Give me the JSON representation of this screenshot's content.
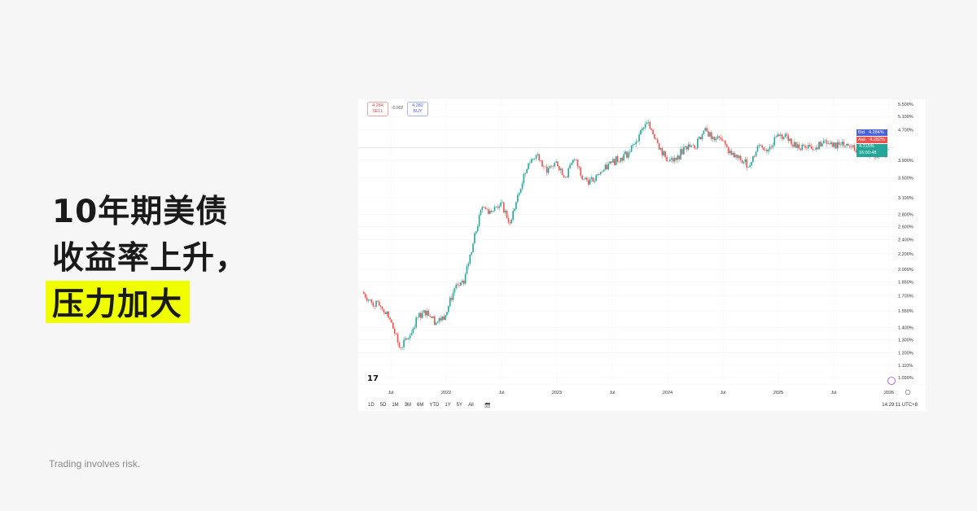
{
  "headline": {
    "line1": "10年期美债",
    "line2": "收益率上升，",
    "line3": "压力加大",
    "highlight_color": "#f0ff00"
  },
  "footer": "Trading involves risk.",
  "quote": {
    "sell_price": "4.284",
    "sell_label": "SELL",
    "spread": "-0.002",
    "buy_price": "4.282",
    "buy_label": "BUY"
  },
  "badges": {
    "bid_label": "Bid",
    "bid_value": "4.284%",
    "ask_label": "Ask",
    "ask_value": "4.282%",
    "last_value": "4.215%",
    "countdown": "16:00:48"
  },
  "toolbar": {
    "timeframes": [
      "1D",
      "5D",
      "1M",
      "3M",
      "6M",
      "YTD",
      "1Y",
      "5Y",
      "All"
    ],
    "clock": "14:29:11 UTC+8"
  },
  "colors": {
    "up": "#26a69a",
    "down": "#ef5350",
    "bid": "#4a62e0",
    "ask": "#ef5350",
    "last": "#26a69a"
  },
  "chart_data": {
    "type": "candlestick",
    "y_scale": "log",
    "ylim": [
      1.03,
      5.5
    ],
    "y_ticks": [
      "5.500%",
      "5.100%",
      "4.700%",
      "3.900%",
      "3.500%",
      "3.100%",
      "2.800%",
      "2.600%",
      "2.400%",
      "2.200%",
      "2.000%",
      "1.850%",
      "1.700%",
      "1.550%",
      "1.400%",
      "1.300%",
      "1.200%",
      "1.110%",
      "1.030%"
    ],
    "y_tick_values": [
      5.5,
      5.1,
      4.7,
      3.9,
      3.5,
      3.1,
      2.8,
      2.6,
      2.4,
      2.2,
      2.0,
      1.85,
      1.7,
      1.55,
      1.4,
      1.3,
      1.2,
      1.11,
      1.03
    ],
    "x_ticks": [
      "Jul",
      "2022",
      "Jul",
      "2023",
      "Jul",
      "2024",
      "Jul",
      "2025",
      "Jul",
      "2026"
    ],
    "x_tick_dates": [
      "2021-07",
      "2022-01",
      "2022-07",
      "2023-01",
      "2023-07",
      "2024-01",
      "2024-07",
      "2025-01",
      "2025-07",
      "2026-01"
    ],
    "x_range": [
      "2021-04",
      "2026-01"
    ],
    "last_price": 4.215,
    "start_open": 1.74,
    "months": [
      "2021-04",
      "2021-05",
      "2021-06",
      "2021-07",
      "2021-08",
      "2021-09",
      "2021-10",
      "2021-11",
      "2021-12",
      "2022-01",
      "2022-02",
      "2022-03",
      "2022-04",
      "2022-05",
      "2022-06",
      "2022-07",
      "2022-08",
      "2022-09",
      "2022-10",
      "2022-11",
      "2022-12",
      "2023-01",
      "2023-02",
      "2023-03",
      "2023-04",
      "2023-05",
      "2023-06",
      "2023-07",
      "2023-08",
      "2023-09",
      "2023-10",
      "2023-11",
      "2023-12",
      "2024-01",
      "2024-02",
      "2024-03",
      "2024-04",
      "2024-05",
      "2024-06",
      "2024-07",
      "2024-08",
      "2024-09",
      "2024-10",
      "2024-11",
      "2024-12",
      "2025-01",
      "2025-02",
      "2025-03",
      "2025-04",
      "2025-05",
      "2025-06",
      "2025-07",
      "2025-08",
      "2025-09",
      "2025-10",
      "2025-11",
      "2025-12"
    ],
    "closes": [
      1.63,
      1.59,
      1.47,
      1.24,
      1.31,
      1.49,
      1.55,
      1.44,
      1.51,
      1.78,
      1.83,
      2.34,
      2.93,
      2.84,
      3.01,
      2.65,
      3.19,
      3.83,
      4.05,
      3.61,
      3.87,
      3.52,
      3.92,
      3.47,
      3.42,
      3.64,
      3.84,
      3.96,
      4.11,
      4.57,
      4.93,
      4.33,
      3.88,
      3.91,
      4.25,
      4.2,
      4.68,
      4.5,
      4.4,
      4.03,
      3.9,
      3.78,
      4.28,
      4.17,
      4.57,
      4.54,
      4.21,
      4.21,
      4.16,
      4.4,
      4.23,
      4.37,
      4.23,
      4.15,
      4.08,
      4.02,
      4.17
    ]
  }
}
